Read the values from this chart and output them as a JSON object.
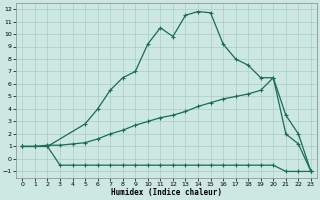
{
  "xlabel": "Humidex (Indice chaleur)",
  "bg_color": "#cce8e0",
  "grid_color": "#aacccc",
  "line_color": "#1a6b5a",
  "xlim": [
    -0.5,
    23.5
  ],
  "ylim": [
    -1.5,
    12.5
  ],
  "xticks": [
    0,
    1,
    2,
    3,
    4,
    5,
    6,
    7,
    8,
    9,
    10,
    11,
    12,
    13,
    14,
    15,
    16,
    17,
    18,
    19,
    20,
    21,
    22,
    23
  ],
  "yticks": [
    -1,
    0,
    1,
    2,
    3,
    4,
    5,
    6,
    7,
    8,
    9,
    10,
    11,
    12
  ],
  "top_x": [
    0,
    1,
    2,
    5,
    6,
    7,
    8,
    9,
    10,
    11,
    12,
    13,
    14,
    15,
    16,
    17,
    18,
    19,
    20,
    21,
    22,
    23
  ],
  "top_y": [
    1,
    1,
    1,
    2.8,
    4.0,
    5.5,
    6.5,
    7.0,
    9.2,
    10.5,
    9.8,
    11.5,
    11.8,
    11.7,
    9.2,
    8.0,
    7.5,
    6.5,
    6.5,
    2.0,
    1.2,
    -1.0
  ],
  "mid_x": [
    0,
    1,
    2,
    3,
    4,
    5,
    6,
    7,
    8,
    9,
    10,
    11,
    12,
    13,
    14,
    15,
    16,
    17,
    18,
    19,
    20,
    21,
    22,
    23
  ],
  "mid_y": [
    1,
    1,
    1.1,
    1.1,
    1.2,
    1.3,
    1.6,
    2.0,
    2.3,
    2.7,
    3.0,
    3.3,
    3.5,
    3.8,
    4.2,
    4.5,
    4.8,
    5.0,
    5.2,
    5.5,
    6.5,
    3.5,
    2.0,
    -1.0
  ],
  "bot_x": [
    0,
    1,
    2,
    3,
    4,
    5,
    6,
    7,
    8,
    9,
    10,
    11,
    12,
    13,
    14,
    15,
    16,
    17,
    18,
    19,
    20,
    21,
    22,
    23
  ],
  "bot_y": [
    1,
    1,
    1,
    -0.5,
    -0.5,
    -0.5,
    -0.5,
    -0.5,
    -0.5,
    -0.5,
    -0.5,
    -0.5,
    -0.5,
    -0.5,
    -0.5,
    -0.5,
    -0.5,
    -0.5,
    -0.5,
    -0.5,
    -0.5,
    -1.0,
    -1.0,
    -1.0
  ]
}
